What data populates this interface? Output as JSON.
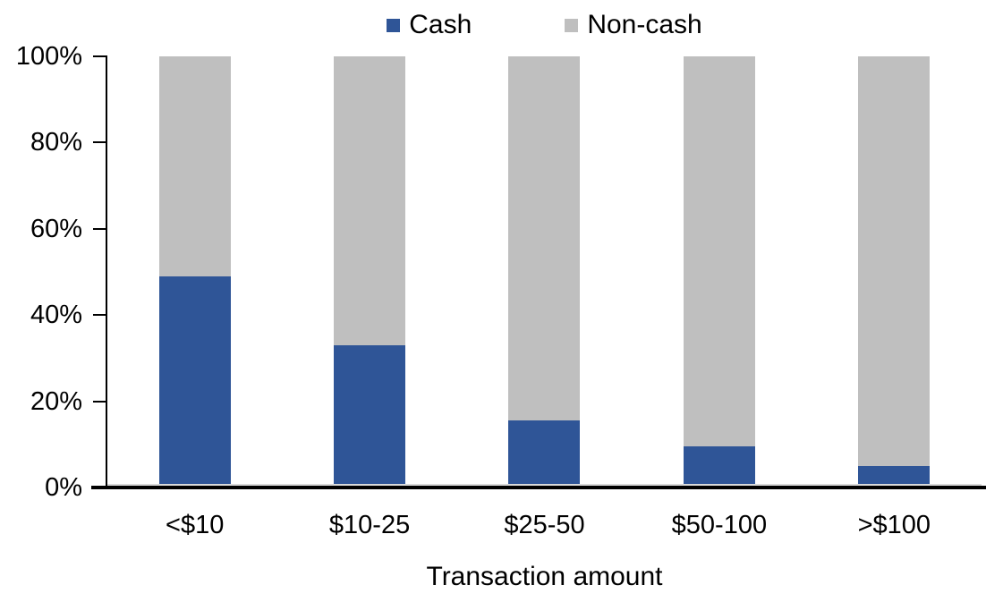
{
  "chart_data": {
    "type": "bar",
    "variant": "stacked-100-percent",
    "title": "",
    "xlabel": "Transaction amount",
    "ylabel": "",
    "categories": [
      "<$10",
      "$10-25",
      "$25-50",
      "$50-100",
      ">$100"
    ],
    "series": [
      {
        "name": "Cash",
        "color": "#2F5597",
        "values": [
          49,
          33,
          15.5,
          9.5,
          5
        ]
      },
      {
        "name": "Non-cash",
        "color": "#BFBFBF",
        "values": [
          51,
          67,
          84.5,
          90.5,
          95
        ]
      }
    ],
    "ylim": [
      0,
      100
    ],
    "ytick_labels": [
      "0%",
      "20%",
      "40%",
      "60%",
      "80%",
      "100%"
    ],
    "legend_position": "top-center",
    "grid": false,
    "colors": {
      "axis": "#000000",
      "zero_line": "#D9D9D9",
      "text": "#000000",
      "background": "#FFFFFF"
    }
  }
}
